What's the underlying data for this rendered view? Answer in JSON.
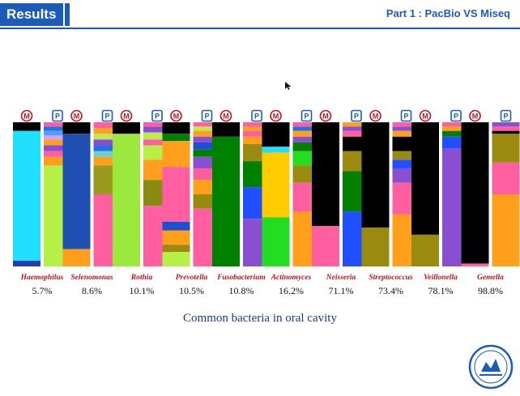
{
  "header": {
    "results_label": "Results",
    "part_title": "Part 1 : PacBio  VS  Miseq"
  },
  "caption": "Common bacteria in oral cavity",
  "markers": {
    "m": "M",
    "p": "P"
  },
  "chart_data": {
    "type": "bar",
    "subtype": "stacked-100-paired",
    "pair_labels": [
      "M",
      "P"
    ],
    "groups": [
      {
        "genus": "Haemophilus",
        "percent": "5.7%",
        "M": [
          [
            "#000000",
            6
          ],
          [
            "#1fe0ff",
            90
          ],
          [
            "#1f3fb0",
            4
          ]
        ],
        "P": [
          [
            "#ff5fa0",
            3
          ],
          [
            "#2a6fe0",
            3
          ],
          [
            "#4aa0ff",
            3
          ],
          [
            "#d0a0ff",
            3
          ],
          [
            "#ff9f1c",
            4
          ],
          [
            "#8a4fd0",
            4
          ],
          [
            "#ff5fa0",
            4
          ],
          [
            "#ff9f1c",
            6
          ],
          [
            "#b6f046",
            70
          ]
        ]
      },
      {
        "genus": "Selenomonas",
        "percent": "8.6%",
        "M": [
          [
            "#000000",
            8
          ],
          [
            "#1f4fb0",
            80
          ],
          [
            "#ff9f1c",
            12
          ]
        ],
        "P": [
          [
            "#ff5fa0",
            4
          ],
          [
            "#ff9f1c",
            4
          ],
          [
            "#c1e84f",
            4
          ],
          [
            "#8a4fd0",
            4
          ],
          [
            "#2a6fe0",
            4
          ],
          [
            "#6ad0d0",
            4
          ],
          [
            "#ff9f1c",
            6
          ],
          [
            "#9a9a20",
            20
          ],
          [
            "#ff5fa0",
            50
          ]
        ]
      },
      {
        "genus": "Rothia",
        "percent": "10.1%",
        "M": [
          [
            "#000000",
            8
          ],
          [
            "#9be83f",
            92
          ]
        ],
        "P": [
          [
            "#ff5fa0",
            3
          ],
          [
            "#8a4fd0",
            4
          ],
          [
            "#c1e84f",
            5
          ],
          [
            "#ff5fa0",
            4
          ],
          [
            "#b6f046",
            10
          ],
          [
            "#ff9f1c",
            14
          ],
          [
            "#8a8a10",
            18
          ],
          [
            "#ff5fa0",
            42
          ]
        ]
      },
      {
        "genus": "Prevotella",
        "percent": "10.5%",
        "M": [
          [
            "#000000",
            8
          ],
          [
            "#008000",
            5
          ],
          [
            "#ff9f1c",
            18
          ],
          [
            "#ff5fa0",
            38
          ],
          [
            "#1f4fd0",
            6
          ],
          [
            "#ff9f1c",
            10
          ],
          [
            "#9a8a10",
            5
          ],
          [
            "#b6f046",
            10
          ]
        ],
        "P": [
          [
            "#ff5fa0",
            3
          ],
          [
            "#c1e84f",
            3
          ],
          [
            "#ff9f1c",
            4
          ],
          [
            "#8a4fd0",
            4
          ],
          [
            "#1f4fd0",
            5
          ],
          [
            "#008000",
            5
          ],
          [
            "#8a4fd0",
            8
          ],
          [
            "#ff5fa0",
            8
          ],
          [
            "#ff9f1c",
            10
          ],
          [
            "#9a8a10",
            10
          ],
          [
            "#ff5fa0",
            40
          ]
        ]
      },
      {
        "genus": "Fusobacterium",
        "percent": "10.8%",
        "M": [
          [
            "#000000",
            10
          ],
          [
            "#008000",
            90
          ]
        ],
        "P": [
          [
            "#ff5fa0",
            3
          ],
          [
            "#ff9f1c",
            3
          ],
          [
            "#ff5fa0",
            4
          ],
          [
            "#ff9f1c",
            5
          ],
          [
            "#9a8a10",
            12
          ],
          [
            "#008000",
            18
          ],
          [
            "#1f4fff",
            22
          ],
          [
            "#8a4fd0",
            33
          ]
        ]
      },
      {
        "genus": "Actinomyces",
        "percent": "16.2%",
        "M": [
          [
            "#000000",
            17
          ],
          [
            "#1fe0ff",
            4
          ],
          [
            "#ffcc00",
            45
          ],
          [
            "#22dd22",
            34
          ]
        ],
        "P": [
          [
            "#ff5fa0",
            3
          ],
          [
            "#2a6fe0",
            3
          ],
          [
            "#ff9f1c",
            4
          ],
          [
            "#8a4fd0",
            4
          ],
          [
            "#008000",
            6
          ],
          [
            "#22dd22",
            10
          ],
          [
            "#9a8a10",
            12
          ],
          [
            "#ff5fa0",
            20
          ],
          [
            "#ff9f1c",
            38
          ]
        ]
      },
      {
        "genus": "Neisseria",
        "percent": "71.1%",
        "M": [
          [
            "#000000",
            72
          ],
          [
            "#ff5fa0",
            28
          ]
        ],
        "P": [
          [
            "#ff9f1c",
            3
          ],
          [
            "#8a4fd0",
            3
          ],
          [
            "#ff5fa0",
            4
          ],
          [
            "#000000",
            10
          ],
          [
            "#9a8a10",
            14
          ],
          [
            "#008000",
            28
          ],
          [
            "#1f4fff",
            38
          ]
        ]
      },
      {
        "genus": "Streptococcus",
        "percent": "73.4%",
        "M": [
          [
            "#000000",
            73
          ],
          [
            "#9a8a10",
            27
          ]
        ],
        "P": [
          [
            "#ff5fa0",
            3
          ],
          [
            "#8a4fd0",
            3
          ],
          [
            "#ff9f1c",
            4
          ],
          [
            "#000000",
            10
          ],
          [
            "#9a8a10",
            6
          ],
          [
            "#1f4fff",
            6
          ],
          [
            "#8a4fd0",
            10
          ],
          [
            "#ff5fa0",
            22
          ],
          [
            "#ff9f1c",
            36
          ]
        ]
      },
      {
        "genus": "Veillonella",
        "percent": "78.1%",
        "M": [
          [
            "#000000",
            78
          ],
          [
            "#9a8a10",
            22
          ]
        ],
        "P": [
          [
            "#ff5fa0",
            3
          ],
          [
            "#ff9f1c",
            3
          ],
          [
            "#008000",
            4
          ],
          [
            "#1f4fff",
            8
          ],
          [
            "#8a4fd0",
            82
          ]
        ]
      },
      {
        "genus": "Gemella",
        "percent": "98.8%",
        "M": [
          [
            "#000000",
            98
          ],
          [
            "#ff5fa0",
            2
          ]
        ],
        "P": [
          [
            "#8a4fd0",
            3
          ],
          [
            "#ff5fa0",
            3
          ],
          [
            "#000000",
            2
          ],
          [
            "#9a8a10",
            20
          ],
          [
            "#ff5fa0",
            22
          ],
          [
            "#ff9f1c",
            50
          ]
        ]
      }
    ]
  }
}
